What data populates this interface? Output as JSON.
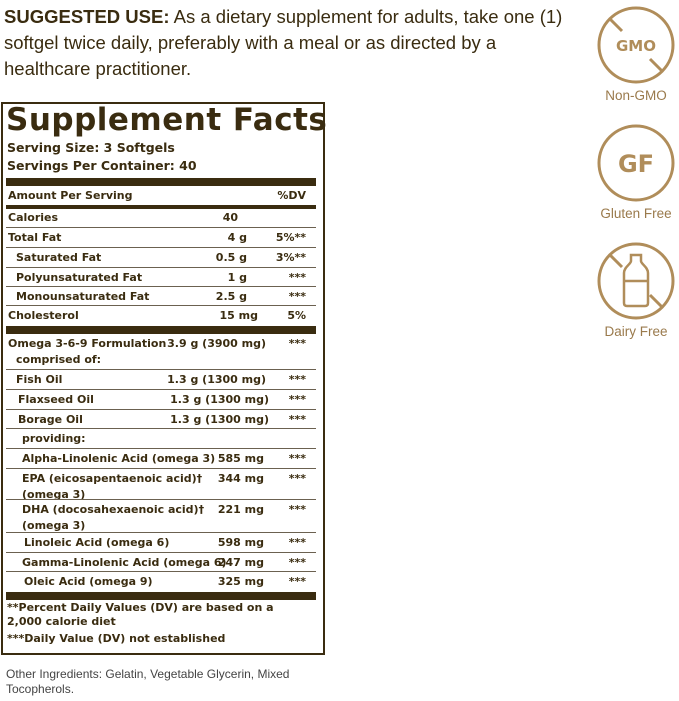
{
  "suggested_use": {
    "heading": "SUGGESTED USE:",
    "text": " As a dietary supplement for adults, take one (1) softgel twice daily, preferably with a meal or as directed by a healthcare practitioner."
  },
  "label": {
    "title": "Supplement Facts",
    "serving_size": "Serving Size: 3 Softgels",
    "servings_per_container": "Servings Per Container: 40",
    "amount_header": "Amount Per Serving",
    "dv_header": "%DV",
    "rows": [
      {
        "name": "Calories",
        "amount": "40",
        "dv": ""
      },
      {
        "name": "Total Fat",
        "amount": "4 g",
        "dv": "5%**"
      },
      {
        "name": "Saturated Fat",
        "amount": "0.5 g",
        "dv": "3%**"
      },
      {
        "name": "Polyunsaturated Fat",
        "amount": "1 g",
        "dv": "***"
      },
      {
        "name": "Monounsaturated Fat",
        "amount": "2.5 g",
        "dv": "***"
      },
      {
        "name": "Cholesterol",
        "amount": "15 mg",
        "dv": "5%"
      },
      {
        "name": "Omega 3-6-9 Formulation",
        "sub": "comprised of:",
        "amount": "3.9 g (3900 mg)",
        "dv": "***"
      },
      {
        "name": "Fish Oil",
        "amount": "1.3 g (1300 mg)",
        "dv": "***"
      },
      {
        "name": "Flaxseed Oil",
        "amount": "1.3 g (1300 mg)",
        "dv": "***"
      },
      {
        "name": "Borage Oil",
        "amount": "1.3 g (1300 mg)",
        "dv": "***"
      },
      {
        "name": "providing:",
        "amount": "",
        "dv": ""
      },
      {
        "name": "Alpha-Linolenic Acid (omega 3)",
        "amount": "585 mg",
        "dv": "***"
      },
      {
        "name": "EPA (eicosapentaenoic acid)†",
        "sub": "(omega 3)",
        "amount": "344 mg",
        "dv": "***"
      },
      {
        "name": "DHA (docosahexaenoic acid)†",
        "sub": "(omega 3)",
        "amount": "221 mg",
        "dv": "***"
      },
      {
        "name": "Linoleic Acid (omega 6)",
        "amount": "598 mg",
        "dv": "***"
      },
      {
        "name": "Gamma-Linolenic Acid (omega 6)",
        "amount": "247 mg",
        "dv": "***"
      },
      {
        "name": "Oleic Acid (omega 9)",
        "amount": "325 mg",
        "dv": "***"
      }
    ],
    "footnote_1": "**Percent Daily Values (DV) are based on a 2,000 calorie diet",
    "footnote_2": "***Daily Value (DV) not established"
  },
  "other_ingredients": "Other Ingredients: Gelatin, Vegetable Glycerin, Mixed Tocopherols.",
  "badges": [
    {
      "icon": "no-gmo-icon",
      "icon_text": "GMO",
      "label": "Non-GMO"
    },
    {
      "icon": "gluten-free-icon",
      "icon_text": "GF",
      "label": "Gluten Free"
    },
    {
      "icon": "no-dairy-icon",
      "label": "Dairy Free"
    }
  ],
  "colors": {
    "label_brown": "#3a2c10",
    "badge_gold": "#b08d5a"
  }
}
